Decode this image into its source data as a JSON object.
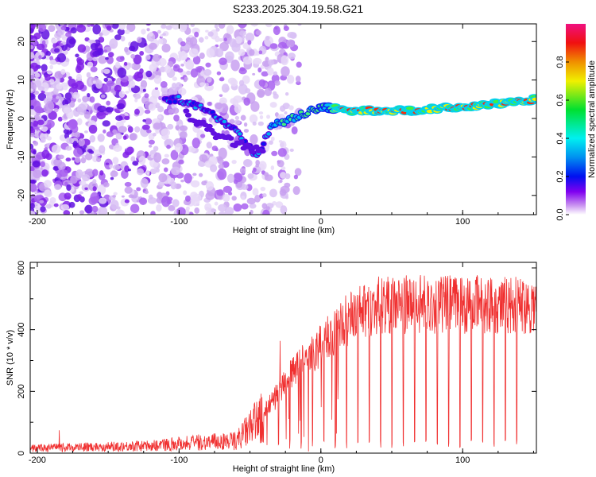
{
  "title": "S233.2025.304.19.58.G21",
  "chart_data": [
    {
      "type": "heatmap",
      "title": "S233.2025.304.19.58.G21",
      "xlabel": "Height of straight line (km)",
      "ylabel": "Frequency (Hz)",
      "xlim": [
        -205,
        152
      ],
      "ylim": [
        -25,
        24.6
      ],
      "xticks": [
        -200,
        -100,
        0,
        100
      ],
      "yticks": [
        20,
        10,
        0,
        -10,
        -20
      ],
      "ridge": {
        "x": [
          -100,
          -80,
          -60,
          -45,
          -35,
          -20,
          0,
          20,
          60,
          100,
          130,
          150
        ],
        "freq": [
          5,
          2,
          -3,
          -10,
          -2,
          0,
          3,
          2,
          2,
          3,
          4,
          5
        ]
      },
      "colorbar": {
        "label": "Normalized spectral amplitude",
        "range": [
          0,
          1
        ],
        "ticks": [
          "0.0",
          "0.2",
          "0.4",
          "0.6",
          "0.8"
        ]
      }
    },
    {
      "type": "line",
      "xlabel": "Height of straight line (km)",
      "ylabel": "SNR (10 * v/v)",
      "xlim": [
        -205,
        152
      ],
      "ylim": [
        0,
        618
      ],
      "xticks": [
        -200,
        -100,
        0,
        100
      ],
      "yticks": [
        0,
        200,
        400,
        600
      ],
      "color": "#f03030",
      "envelope": {
        "x": [
          -205,
          -120,
          -100,
          -60,
          -40,
          -20,
          0,
          20,
          40,
          150
        ],
        "snr": [
          20,
          30,
          40,
          50,
          150,
          300,
          400,
          500,
          550,
          550
        ]
      }
    }
  ]
}
